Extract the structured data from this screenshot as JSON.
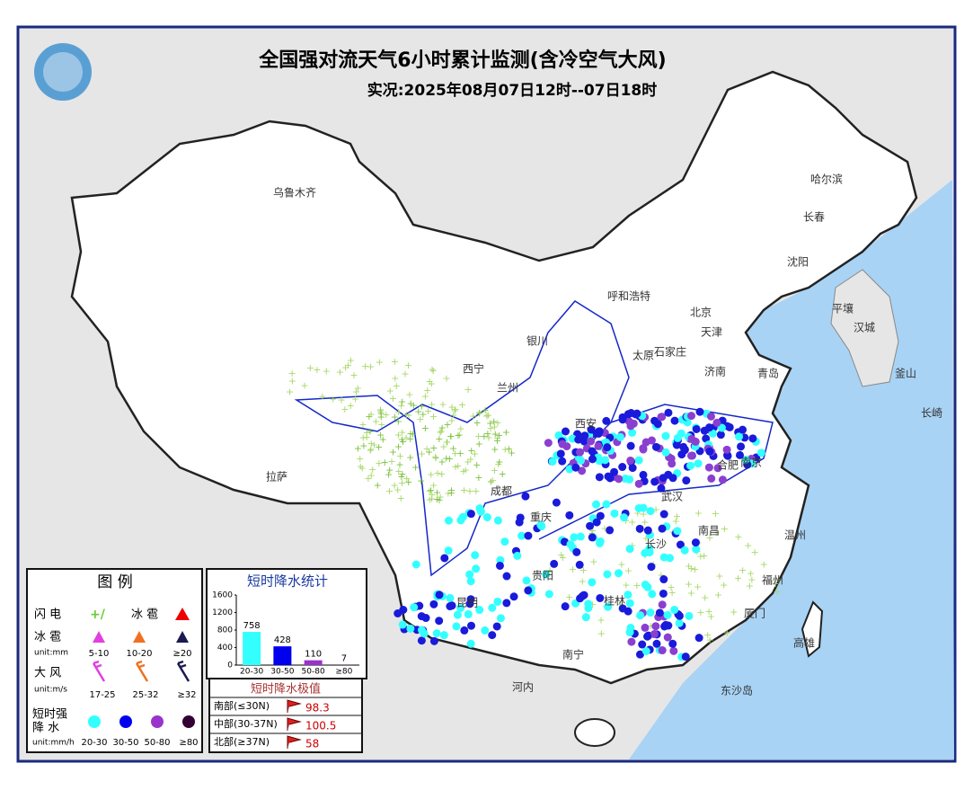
{
  "header": {
    "title": "全国强对流天气6小时累计监测(含冷空气大风)",
    "subtitle": "实况:2025年08月07日12时--07日18时"
  },
  "places": [
    "乌鲁木齐",
    "哈尔滨",
    "长春",
    "沈阳",
    "呼和浩特",
    "北京",
    "天津",
    "太原",
    "石家庄",
    "济南",
    "青岛",
    "银川",
    "西宁",
    "兰州",
    "西安",
    "合肥",
    "南京",
    "武汉",
    "成都",
    "重庆",
    "长沙",
    "南昌",
    "贵阳",
    "昆明",
    "桂林",
    "南宁",
    "福州",
    "温州",
    "拉萨",
    "平壤",
    "汉城",
    "釜山",
    "长崎",
    "东沙岛",
    "河内",
    "厦门",
    "高雄"
  ],
  "legend": {
    "title": "图 例",
    "lightning": "闪 电",
    "hail_right": "冰 雹",
    "hail": "冰 雹",
    "hail_unit": "unit:mm",
    "hail_classes": [
      "5-10",
      "10-20",
      "≥20"
    ],
    "wind": "大 风",
    "wind_unit": "unit:m/s",
    "wind_classes": [
      "17-25",
      "25-32",
      "≥32"
    ],
    "rain_line1": "短时强",
    "rain_line2": "降 水",
    "rain_unit": "unit:mm/h",
    "rain_classes": [
      "20-30",
      "30-50",
      "50-80",
      "≥80"
    ]
  },
  "chart_data": {
    "type": "bar",
    "title": "短时降水统计",
    "categories": [
      "20-30",
      "30-50",
      "50-80",
      "≥80"
    ],
    "values": [
      758,
      428,
      110,
      7
    ],
    "colors": [
      "#33ffff",
      "#0000ee",
      "#9933cc",
      "#330033"
    ],
    "ylim": [
      0,
      1600
    ],
    "yticks": [
      0,
      400,
      800,
      1200,
      1600
    ]
  },
  "extremes": {
    "title": "短时降水极值",
    "rows": [
      {
        "region": "南部(≤30N)",
        "value": 98.3
      },
      {
        "region": "中部(30-37N)",
        "value": 100.5
      },
      {
        "region": "北部(≥37N)",
        "value": 58
      }
    ]
  }
}
